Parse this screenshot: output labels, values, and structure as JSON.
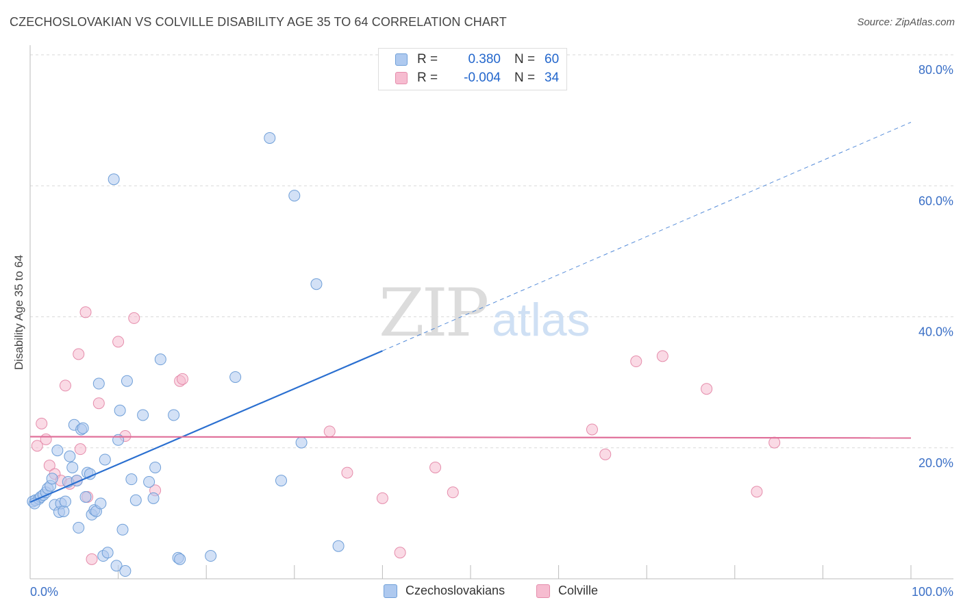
{
  "title": "CZECHOSLOVAKIAN VS COLVILLE DISABILITY AGE 35 TO 64 CORRELATION CHART",
  "source": "Source: ZipAtlas.com",
  "watermark": {
    "zip": "ZIP",
    "atlas": "atlas"
  },
  "legend": {
    "rows": [
      {
        "r_label": "R =",
        "r_value": "0.380",
        "n_label": "N =",
        "n_value": "60"
      },
      {
        "r_label": "R =",
        "r_value": "-0.004",
        "n_label": "N =",
        "n_value": "34"
      }
    ]
  },
  "bottom_legend": {
    "czech": "Czechoslovakians",
    "colville": "Colville"
  },
  "colors": {
    "czech_fill": "#aec9ef",
    "czech_stroke": "#6f9fd8",
    "czech_line": "#2a6fd0",
    "colville_fill": "#f6bcd0",
    "colville_stroke": "#e58cab",
    "colville_line": "#e0709a",
    "tick_label": "#3a6fc6"
  },
  "chart_data": {
    "type": "scatter",
    "title": "CZECHOSLOVAKIAN VS COLVILLE DISABILITY AGE 35 TO 64 CORRELATION CHART",
    "xlabel": "",
    "ylabel": "Disability Age 35 to 64",
    "xlim": [
      0,
      100
    ],
    "ylim": [
      0,
      80
    ],
    "x_tick_labels": [
      "0.0%",
      "100.0%"
    ],
    "y_ticks": [
      20,
      40,
      60,
      80
    ],
    "y_tick_labels": [
      "20.0%",
      "40.0%",
      "60.0%",
      "80.0%"
    ],
    "grid": true,
    "series": [
      {
        "name": "Czechoslovakians",
        "points": [
          [
            0.3,
            11.8
          ],
          [
            0.6,
            12.0
          ],
          [
            1.0,
            12.2
          ],
          [
            1.2,
            12.5
          ],
          [
            1.5,
            12.8
          ],
          [
            1.8,
            13.2
          ],
          [
            2.0,
            13.8
          ],
          [
            2.3,
            14.2
          ],
          [
            2.5,
            15.3
          ],
          [
            2.8,
            11.3
          ],
          [
            3.1,
            19.6
          ],
          [
            3.3,
            10.2
          ],
          [
            3.5,
            11.5
          ],
          [
            3.8,
            10.3
          ],
          [
            4.0,
            11.8
          ],
          [
            4.3,
            14.8
          ],
          [
            4.5,
            18.7
          ],
          [
            4.8,
            17.0
          ],
          [
            5.0,
            23.5
          ],
          [
            5.3,
            15.0
          ],
          [
            5.5,
            7.8
          ],
          [
            5.8,
            22.8
          ],
          [
            6.0,
            23.0
          ],
          [
            6.3,
            12.5
          ],
          [
            6.5,
            16.2
          ],
          [
            6.8,
            16.0
          ],
          [
            7.0,
            9.8
          ],
          [
            7.3,
            10.5
          ],
          [
            7.5,
            10.3
          ],
          [
            7.8,
            29.8
          ],
          [
            8.0,
            11.5
          ],
          [
            8.3,
            3.5
          ],
          [
            8.5,
            18.2
          ],
          [
            8.8,
            4.0
          ],
          [
            9.5,
            61.0
          ],
          [
            9.8,
            2.0
          ],
          [
            10.0,
            21.2
          ],
          [
            10.2,
            25.7
          ],
          [
            10.5,
            7.5
          ],
          [
            10.8,
            1.2
          ],
          [
            11.0,
            30.2
          ],
          [
            11.5,
            15.2
          ],
          [
            12.0,
            12.0
          ],
          [
            12.8,
            25.0
          ],
          [
            13.5,
            14.8
          ],
          [
            14.0,
            12.3
          ],
          [
            14.2,
            17.0
          ],
          [
            14.8,
            33.5
          ],
          [
            16.3,
            25.0
          ],
          [
            16.8,
            3.2
          ],
          [
            17.0,
            3.0
          ],
          [
            20.5,
            3.5
          ],
          [
            23.3,
            30.8
          ],
          [
            27.2,
            67.3
          ],
          [
            28.5,
            15.0
          ],
          [
            30.0,
            58.5
          ],
          [
            30.8,
            20.8
          ],
          [
            32.5,
            45.0
          ],
          [
            35.0,
            5.0
          ],
          [
            0.5,
            11.5
          ]
        ],
        "trend": {
          "x": [
            0,
            40,
            100
          ],
          "y": [
            11.7,
            34.8,
            69.7
          ],
          "solid_until": 40
        }
      },
      {
        "name": "Colville",
        "points": [
          [
            0.8,
            20.3
          ],
          [
            1.3,
            23.7
          ],
          [
            1.8,
            21.3
          ],
          [
            2.2,
            17.3
          ],
          [
            2.8,
            16.0
          ],
          [
            3.5,
            15.0
          ],
          [
            4.0,
            29.5
          ],
          [
            4.5,
            14.5
          ],
          [
            5.3,
            15.0
          ],
          [
            5.5,
            34.3
          ],
          [
            5.7,
            19.8
          ],
          [
            6.3,
            40.7
          ],
          [
            6.5,
            12.5
          ],
          [
            7.0,
            3.0
          ],
          [
            7.8,
            26.8
          ],
          [
            10.0,
            36.2
          ],
          [
            10.8,
            21.8
          ],
          [
            11.8,
            39.8
          ],
          [
            14.2,
            13.5
          ],
          [
            17.0,
            30.2
          ],
          [
            17.3,
            30.5
          ],
          [
            34.0,
            22.5
          ],
          [
            36.0,
            16.2
          ],
          [
            40.0,
            12.3
          ],
          [
            42.0,
            4.0
          ],
          [
            46.0,
            17.0
          ],
          [
            48.0,
            13.2
          ],
          [
            63.8,
            22.8
          ],
          [
            65.3,
            19.0
          ],
          [
            68.8,
            33.2
          ],
          [
            71.8,
            34.0
          ],
          [
            76.8,
            29.0
          ],
          [
            82.5,
            13.3
          ],
          [
            84.5,
            20.8
          ]
        ],
        "trend": {
          "x": [
            0,
            100
          ],
          "y": [
            21.7,
            21.5
          ],
          "solid_until": 100
        }
      }
    ]
  }
}
